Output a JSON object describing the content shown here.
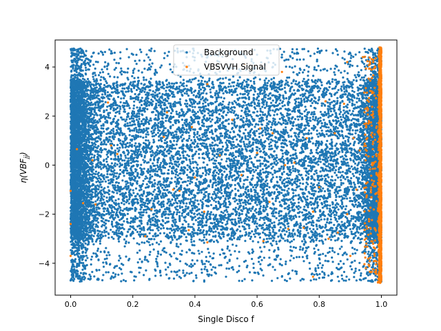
{
  "chart_data": {
    "type": "scatter",
    "title": "",
    "xlabel": "Single Disco f",
    "ylabel": "η(VBF_jj)",
    "ylabel_main": "η(VBF",
    "ylabel_sub": "jj",
    "ylabel_close": ")",
    "xlim": [
      -0.05,
      1.05
    ],
    "ylim": [
      -5.3,
      5.1
    ],
    "xticks": [
      0.0,
      0.2,
      0.4,
      0.6,
      0.8,
      1.0
    ],
    "xtick_labels": [
      "0.0",
      "0.2",
      "0.4",
      "0.6",
      "0.8",
      "1.0"
    ],
    "yticks": [
      -4,
      -2,
      0,
      2,
      4
    ],
    "ytick_labels": [
      "−4",
      "−2",
      "0",
      "2",
      "4"
    ],
    "legend_position": "upper-center",
    "series": [
      {
        "name": "Background",
        "color": "#1f77b4",
        "description": "dense uniform band, x from 0.0 to 1.0, eta mostly between -3 and 3.5 with sparser tails to ±4.8; very dense near x=0 and x=1",
        "points": [
          [
            0.01,
            4.75
          ],
          [
            0.02,
            4.7
          ],
          [
            0.05,
            4.65
          ],
          [
            0.09,
            4.55
          ],
          [
            0.13,
            4.55
          ],
          [
            0.16,
            4.6
          ],
          [
            0.26,
            4.75
          ],
          [
            0.27,
            4.65
          ],
          [
            0.36,
            4.65
          ],
          [
            0.42,
            4.5
          ],
          [
            0.47,
            4.5
          ],
          [
            0.51,
            4.55
          ],
          [
            0.6,
            4.5
          ],
          [
            0.68,
            4.5
          ],
          [
            0.72,
            4.55
          ],
          [
            0.86,
            4.5
          ],
          [
            0.9,
            4.55
          ],
          [
            0.96,
            4.7
          ],
          [
            0.99,
            4.75
          ],
          [
            0.0,
            -4.7
          ],
          [
            0.03,
            -4.55
          ],
          [
            0.09,
            -4.65
          ],
          [
            0.13,
            -4.6
          ],
          [
            0.21,
            -4.55
          ],
          [
            0.29,
            -4.5
          ],
          [
            0.35,
            -4.55
          ],
          [
            0.43,
            -4.7
          ],
          [
            0.5,
            -4.55
          ],
          [
            0.56,
            -4.65
          ],
          [
            0.62,
            -4.5
          ],
          [
            0.68,
            -4.55
          ],
          [
            0.74,
            -4.7
          ],
          [
            0.8,
            -4.6
          ],
          [
            0.86,
            -4.55
          ],
          [
            0.92,
            -4.7
          ],
          [
            0.97,
            -4.75
          ]
        ]
      },
      {
        "name": "VBSVVH Signal",
        "color": "#ff7f0e",
        "description": "concentrated at x≈1.0 across full eta range, with sparse scatter elsewhere",
        "points": [
          [
            0.0,
            -1.05
          ],
          [
            0.0,
            -2.4
          ],
          [
            0.0,
            -3.7
          ],
          [
            0.02,
            0.65
          ],
          [
            0.04,
            -1.55
          ],
          [
            0.07,
            0.2
          ],
          [
            0.08,
            -1.6
          ],
          [
            0.12,
            2.55
          ],
          [
            0.13,
            0.8
          ],
          [
            0.15,
            0.45
          ],
          [
            0.24,
            -2.9
          ],
          [
            0.26,
            -1.8
          ],
          [
            0.3,
            1.15
          ],
          [
            0.31,
            2.15
          ],
          [
            0.33,
            -1.0
          ],
          [
            0.35,
            -1.05
          ],
          [
            0.38,
            -2.65
          ],
          [
            0.39,
            1.55
          ],
          [
            0.4,
            -0.5
          ],
          [
            0.43,
            -1.9
          ],
          [
            0.44,
            3.3
          ],
          [
            0.44,
            -3.15
          ],
          [
            0.48,
            0.4
          ],
          [
            0.52,
            1.85
          ],
          [
            0.55,
            -0.4
          ],
          [
            0.56,
            4.1
          ],
          [
            0.6,
            0.5
          ],
          [
            0.61,
            1.5
          ],
          [
            0.62,
            -3.1
          ],
          [
            0.64,
            -1.5
          ],
          [
            0.65,
            1.3
          ],
          [
            0.68,
            3.8
          ],
          [
            0.69,
            0.0
          ],
          [
            0.7,
            -2.6
          ],
          [
            0.72,
            0.1
          ],
          [
            0.75,
            -2.55
          ],
          [
            0.76,
            1.1
          ],
          [
            0.78,
            -4.55
          ],
          [
            0.78,
            -1.9
          ],
          [
            0.8,
            -0.9
          ],
          [
            0.82,
            2.6
          ],
          [
            0.83,
            -3.0
          ],
          [
            0.85,
            1.3
          ],
          [
            0.86,
            -2.75
          ],
          [
            0.88,
            2.5
          ],
          [
            0.89,
            -2.0
          ],
          [
            0.89,
            4.2
          ],
          [
            0.9,
            -3.7
          ],
          [
            0.91,
            1.1
          ],
          [
            0.92,
            -1.0
          ],
          [
            0.93,
            0.6
          ],
          [
            0.94,
            4.4
          ],
          [
            0.95,
            -4.2
          ],
          [
            0.96,
            1.8
          ],
          [
            0.96,
            -2.2
          ],
          [
            0.97,
            0.0
          ],
          [
            0.97,
            3.0
          ],
          [
            0.98,
            -3.4
          ]
        ]
      }
    ]
  }
}
